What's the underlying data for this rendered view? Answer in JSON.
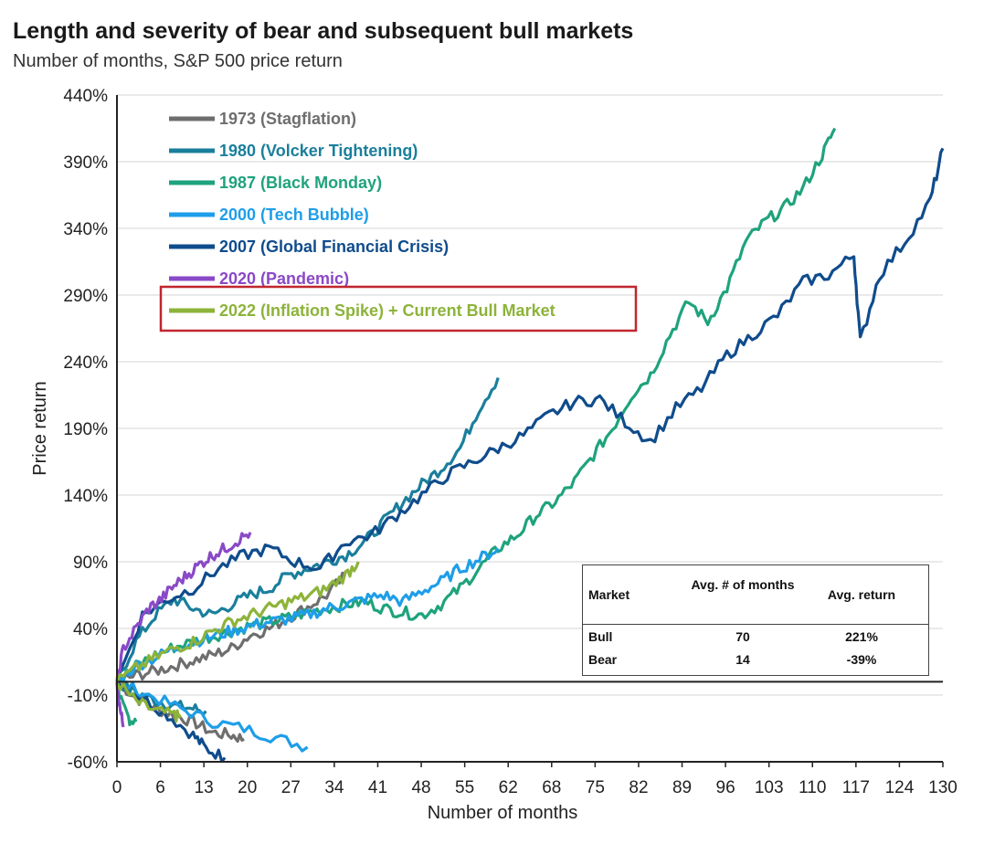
{
  "title": "Length and severity of bear and subsequent bull markets",
  "subtitle": "Number of months, S&P 500 price return",
  "chart_data": {
    "type": "line",
    "xlabel": "Number of months",
    "ylabel": "Price return",
    "xticks": [
      "0",
      "6",
      "13",
      "20",
      "27",
      "34",
      "41",
      "48",
      "55",
      "62",
      "68",
      "75",
      "82",
      "89",
      "96",
      "103",
      "110",
      "117",
      "124",
      "130"
    ],
    "yticks": [
      "440%",
      "390%",
      "340%",
      "290%",
      "240%",
      "190%",
      "140%",
      "90%",
      "40%",
      "-10%",
      "-60%"
    ],
    "xlim": [
      0,
      130
    ],
    "ylim": [
      -60,
      440
    ],
    "grid": true,
    "legend_position": "top-left",
    "highlighted_series": "2022 (Inflation Spike) + Current Bull Market",
    "series": [
      {
        "name": "1973 (Stagflation)",
        "color": "#6e6e6e",
        "x": [
          0,
          3,
          6,
          9,
          12,
          15,
          18,
          20
        ],
        "y": [
          0,
          -12,
          -20,
          -25,
          -30,
          -38,
          -40,
          -43
        ]
      },
      {
        "name": "1980 (Volcker Tightening)",
        "color": "#1a7f9c",
        "x": [
          0,
          3,
          6,
          9,
          12,
          14
        ],
        "y": [
          0,
          -8,
          -14,
          -18,
          -20,
          -22
        ]
      },
      {
        "name": "1987 (Black Monday)",
        "color": "#1fa37c",
        "x": [
          0,
          1,
          2,
          3
        ],
        "y": [
          0,
          -20,
          -28,
          -30
        ]
      },
      {
        "name": "2000 (Tech Bubble)",
        "color": "#1e9ee8",
        "x": [
          0,
          5,
          10,
          15,
          20,
          25,
          30
        ],
        "y": [
          0,
          -10,
          -20,
          -30,
          -35,
          -42,
          -49
        ]
      },
      {
        "name": "2007 (Global Financial Crisis)",
        "color": "#0f4c8c",
        "x": [
          0,
          4,
          8,
          12,
          14,
          17
        ],
        "y": [
          0,
          -12,
          -25,
          -40,
          -50,
          -57
        ]
      },
      {
        "name": "2020 (Pandemic)",
        "color": "#8a49c7",
        "x": [
          0,
          0.5,
          1
        ],
        "y": [
          0,
          -20,
          -34
        ]
      },
      {
        "name": "2022 (Inflation Spike) + Current Bull Market",
        "color": "#8db33a",
        "x": [
          0,
          3,
          6,
          9,
          10
        ],
        "y": [
          0,
          -15,
          -22,
          -25,
          -27
        ]
      },
      {
        "name": "1973 (Stagflation)",
        "color": "#6e6e6e",
        "x": [
          0,
          3,
          6,
          9,
          12,
          15,
          18,
          21,
          24,
          27,
          30,
          33,
          36
        ],
        "y": [
          0,
          5,
          8,
          12,
          16,
          20,
          25,
          35,
          40,
          48,
          56,
          65,
          80
        ]
      },
      {
        "name": "1980 (Volcker Tightening)",
        "color": "#1a7f9c",
        "x": [
          0,
          3,
          6,
          9,
          12,
          15,
          18,
          21,
          24,
          27,
          30,
          33,
          36,
          39,
          42,
          45,
          48,
          51,
          54,
          57,
          60
        ],
        "y": [
          0,
          30,
          50,
          62,
          55,
          50,
          58,
          65,
          70,
          80,
          85,
          90,
          95,
          105,
          120,
          135,
          148,
          160,
          175,
          205,
          228
        ]
      },
      {
        "name": "1987 (Black Monday)",
        "color": "#1fa37c",
        "x": [
          0,
          3,
          6,
          9,
          12,
          15,
          18,
          21,
          24,
          27,
          30,
          33,
          36,
          39,
          42,
          45,
          48,
          51,
          54,
          57,
          60,
          63,
          66,
          69,
          72,
          75,
          78,
          81,
          84,
          87,
          90,
          93,
          96,
          99,
          102,
          105,
          108,
          111,
          113
        ],
        "y": [
          0,
          12,
          20,
          26,
          30,
          34,
          38,
          42,
          45,
          48,
          52,
          55,
          58,
          60,
          55,
          52,
          50,
          58,
          70,
          85,
          100,
          110,
          125,
          135,
          150,
          170,
          190,
          215,
          230,
          260,
          285,
          270,
          295,
          330,
          345,
          355,
          370,
          395,
          415
        ]
      },
      {
        "name": "2000 (Tech Bubble)",
        "color": "#1e9ee8",
        "x": [
          0,
          3,
          6,
          9,
          12,
          15,
          18,
          21,
          24,
          27,
          30,
          33,
          36,
          39,
          42,
          45,
          48,
          51,
          54,
          57,
          60
        ],
        "y": [
          0,
          12,
          18,
          25,
          30,
          34,
          38,
          42,
          45,
          47,
          50,
          55,
          58,
          62,
          65,
          60,
          68,
          75,
          85,
          92,
          100
        ]
      },
      {
        "name": "2007 (Global Financial Crisis)",
        "color": "#0f4c8c",
        "x": [
          0,
          4,
          8,
          12,
          16,
          20,
          24,
          28,
          32,
          36,
          40,
          44,
          48,
          52,
          56,
          60,
          64,
          68,
          72,
          76,
          80,
          84,
          88,
          92,
          96,
          100,
          104,
          108,
          112,
          116,
          117,
          120,
          124,
          128,
          130
        ],
        "y": [
          0,
          50,
          62,
          70,
          85,
          95,
          100,
          90,
          85,
          105,
          110,
          125,
          140,
          155,
          165,
          175,
          185,
          200,
          210,
          212,
          195,
          180,
          205,
          220,
          245,
          260,
          275,
          300,
          305,
          320,
          255,
          305,
          330,
          360,
          400
        ]
      },
      {
        "name": "2020 (Pandemic)",
        "color": "#8a49c7",
        "x": [
          0,
          1,
          3,
          5,
          7,
          9,
          11,
          13,
          15,
          17,
          19,
          21
        ],
        "y": [
          0,
          25,
          40,
          55,
          62,
          72,
          80,
          88,
          95,
          100,
          106,
          112
        ]
      },
      {
        "name": "2022 (Inflation Spike) + Current Bull Market",
        "color": "#8db33a",
        "x": [
          0,
          3,
          6,
          9,
          12,
          15,
          18,
          21,
          24,
          27,
          30,
          33,
          36,
          38
        ],
        "y": [
          0,
          10,
          18,
          25,
          30,
          38,
          45,
          50,
          55,
          60,
          64,
          70,
          80,
          90
        ]
      }
    ],
    "table": {
      "headers": [
        "Market",
        "Avg. # of months",
        "Avg. return"
      ],
      "rows": [
        [
          "Bull",
          "70",
          "221%"
        ],
        [
          "Bear",
          "14",
          "-39%"
        ]
      ]
    }
  },
  "legend": [
    {
      "label": "1973 (Stagflation)",
      "color": "#6e6e6e"
    },
    {
      "label": "1980 (Volcker Tightening)",
      "color": "#1a7f9c"
    },
    {
      "label": "1987 (Black Monday)",
      "color": "#1fa37c"
    },
    {
      "label": "2000 (Tech Bubble)",
      "color": "#1e9ee8"
    },
    {
      "label": "2007 (Global Financial Crisis)",
      "color": "#0f4c8c"
    },
    {
      "label": "2020 (Pandemic)",
      "color": "#8a49c7"
    },
    {
      "label": "2022 (Inflation Spike) + Current Bull Market",
      "color": "#8db33a"
    }
  ],
  "highlight_color": "#c0262d",
  "stats": {
    "header_market": "Market",
    "header_months": "Avg. # of months",
    "header_return": "Avg. return",
    "bull_label": "Bull",
    "bull_months": "70",
    "bull_return": "221%",
    "bear_label": "Bear",
    "bear_months": "14",
    "bear_return": "-39%"
  }
}
